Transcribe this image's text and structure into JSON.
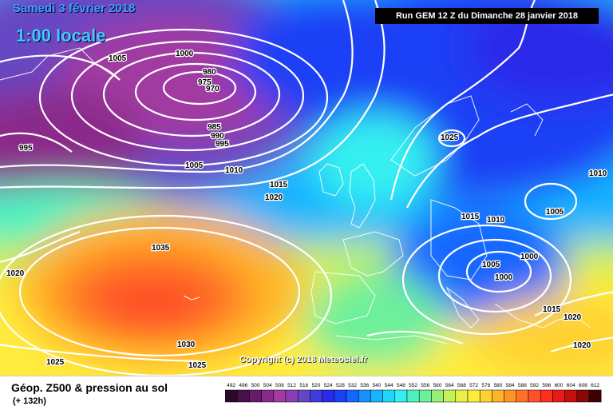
{
  "header": {
    "date": "Samedi 3 février 2018",
    "time": "1:00 locale",
    "run": "Run GEM 12 Z du Dimanche 28 janvier 2018"
  },
  "copyright": "Copyright (c) 2018 Meteociel.fr",
  "legend": {
    "title": "Géop. Z500 & pression au sol",
    "subtitle": "(+ 132h)",
    "scale_values": [
      "492",
      "496",
      "500",
      "504",
      "508",
      "512",
      "516",
      "520",
      "524",
      "528",
      "532",
      "536",
      "540",
      "544",
      "548",
      "552",
      "556",
      "560",
      "564",
      "568",
      "572",
      "576",
      "580",
      "584",
      "588",
      "592",
      "596",
      "600",
      "604",
      "608",
      "612"
    ],
    "scale_colors": [
      "#2a0a2a",
      "#4a0f4a",
      "#6a1a6a",
      "#8a2a8a",
      "#a13aa1",
      "#8a3fb0",
      "#6646c4",
      "#3e3ed8",
      "#2a2aea",
      "#1a40f5",
      "#1466ff",
      "#1490ff",
      "#18b4ff",
      "#20d6ff",
      "#35f0f0",
      "#4cf2c0",
      "#6df09a",
      "#95ef78",
      "#c2f05a",
      "#e8f246",
      "#ffec3c",
      "#ffd232",
      "#ffb428",
      "#ff9428",
      "#ff7228",
      "#ff5028",
      "#ff2e20",
      "#e81a1a",
      "#c40f0f",
      "#8a0808",
      "#400000"
    ]
  },
  "isobars": [
    {
      "label": "1005",
      "note": "pressure contour"
    },
    {
      "label": "1000"
    },
    {
      "label": "980"
    },
    {
      "label": "975"
    },
    {
      "label": "970"
    },
    {
      "label": "985"
    },
    {
      "label": "990"
    },
    {
      "label": "995"
    },
    {
      "label": "1005"
    },
    {
      "label": "1010"
    },
    {
      "label": "1015"
    },
    {
      "label": "1020"
    },
    {
      "label": "1025"
    },
    {
      "label": "1015"
    },
    {
      "label": "1010"
    },
    {
      "label": "1005"
    },
    {
      "label": "1000"
    },
    {
      "label": "1005"
    },
    {
      "label": "1000"
    },
    {
      "label": "1015"
    },
    {
      "label": "1020"
    },
    {
      "label": "1035"
    },
    {
      "label": "1020"
    },
    {
      "label": "1030"
    },
    {
      "label": "1025"
    },
    {
      "label": "1025"
    },
    {
      "label": "1020"
    },
    {
      "label": "995"
    },
    {
      "label": "1010"
    }
  ]
}
